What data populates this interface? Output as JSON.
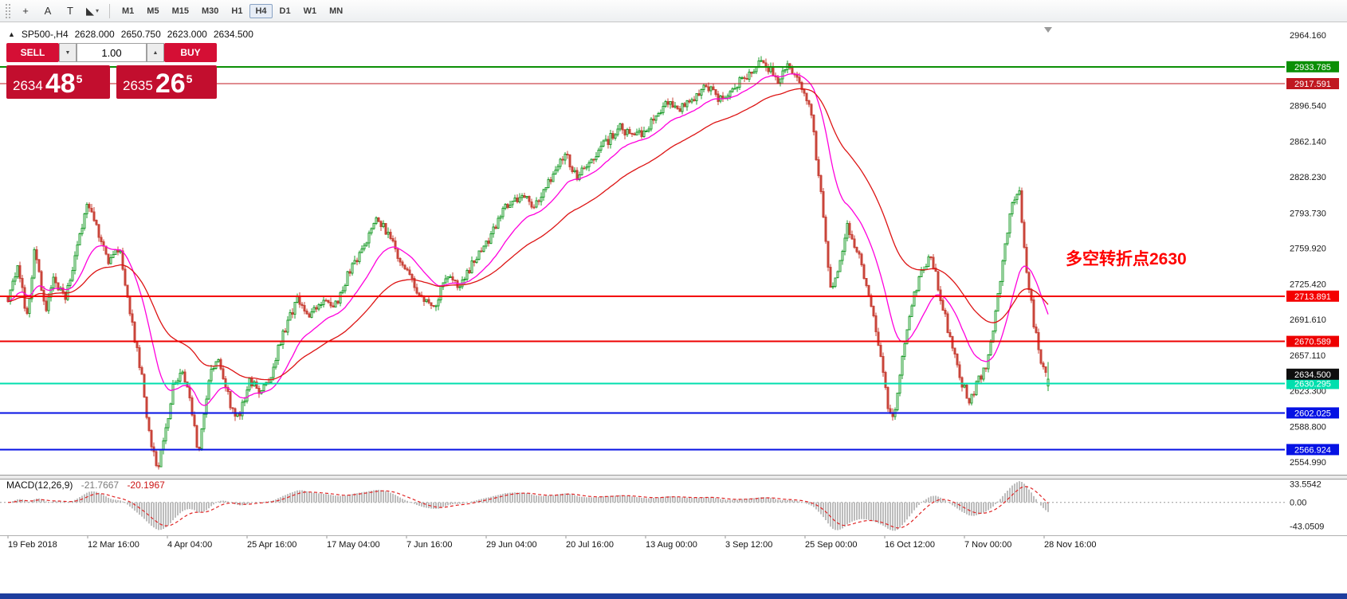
{
  "window": {
    "bottom_strip_color": "#1e3e9e"
  },
  "toolbar": {
    "tools": [
      {
        "name": "crosshair-icon",
        "glyph": "+"
      },
      {
        "name": "text-label-icon",
        "glyph": "A"
      },
      {
        "name": "text-box-icon",
        "glyph": "T"
      },
      {
        "name": "shapes-menu-icon",
        "glyph": "◣",
        "caret": "▾"
      }
    ],
    "timeframes": [
      {
        "label": "M1",
        "active": false
      },
      {
        "label": "M5",
        "active": false
      },
      {
        "label": "M15",
        "active": false
      },
      {
        "label": "M30",
        "active": false
      },
      {
        "label": "H1",
        "active": false
      },
      {
        "label": "H4",
        "active": true
      },
      {
        "label": "D1",
        "active": false
      },
      {
        "label": "W1",
        "active": false
      },
      {
        "label": "MN",
        "active": false
      }
    ]
  },
  "header": {
    "arrow": "▲",
    "symbol_period": "SP500-,H4",
    "open": "2628.000",
    "high": "2650.750",
    "low": "2623.000",
    "close": "2634.500"
  },
  "trade_panel": {
    "sell_label": "SELL",
    "buy_label": "BUY",
    "volume": "1.00",
    "down_glyph": "▼",
    "up_glyph": "▲",
    "sell_price": {
      "head": "2634",
      "big": "48",
      "sup": "5"
    },
    "buy_price": {
      "head": "2635",
      "big": "26",
      "sup": "5"
    },
    "button_color": "#d50f35",
    "panel_color": "#c20e2e"
  },
  "annotation": {
    "text": "多空转折点2630",
    "color": "#ff0000"
  },
  "macd_label": {
    "name": "MACD(12,26,9)",
    "value": "-21.7667",
    "signal": "-20.1967"
  },
  "chart_data": {
    "type": "candlestick",
    "symbol": "SP500-",
    "period": "H4",
    "title": "SP500-,H4",
    "last_ohlc": {
      "open": 2628.0,
      "high": 2650.75,
      "low": 2623.0,
      "close": 2634.5
    },
    "y_axis": {
      "min": 2554.99,
      "max": 2964.16,
      "ticks": [
        "2964.160",
        "2896.540",
        "2862.140",
        "2828.230",
        "2793.730",
        "2759.920",
        "2725.420",
        "2691.610",
        "2657.110",
        "2623.300",
        "2588.800",
        "2554.990"
      ]
    },
    "x_ticks": [
      "19 Feb 2018",
      "12 Mar 16:00",
      "4 Apr 04:00",
      "25 Apr 16:00",
      "17 May 04:00",
      "7 Jun 16:00",
      "29 Jun 04:00",
      "20 Jul 16:00",
      "13 Aug 00:00",
      "3 Sep 12:00",
      "25 Sep 00:00",
      "16 Oct 12:00",
      "7 Nov 00:00",
      "28 Nov 16:00"
    ],
    "levels": [
      {
        "price": 2933.785,
        "label": "2933.785",
        "color": "#0b8f06",
        "width": 2
      },
      {
        "price": 2917.591,
        "label": "2917.591",
        "color": "#c01820",
        "width": 1
      },
      {
        "price": 2713.891,
        "label": "2713.891",
        "color": "#f40000",
        "width": 2
      },
      {
        "price": 2670.589,
        "label": "2670.589",
        "color": "#ee0000",
        "width": 2
      },
      {
        "price": 2630.295,
        "label": "2630.295",
        "color": "#00dfae",
        "width": 2
      },
      {
        "price": 2602.025,
        "label": "2602.025",
        "color": "#0512e4",
        "width": 2
      },
      {
        "price": 2566.924,
        "label": "2566.924",
        "color": "#0512e4",
        "width": 2
      }
    ],
    "current_price": {
      "value": 2634.5,
      "label": "2634.500",
      "badge_color": "#0e0e0e"
    },
    "candles": {
      "count": 436,
      "bull_color": "#1f9e2e",
      "bear_color": "#c9443a",
      "price_path": [
        [
          0.0,
          2712
        ],
        [
          0.01,
          2745
        ],
        [
          0.018,
          2690
        ],
        [
          0.026,
          2762
        ],
        [
          0.036,
          2700
        ],
        [
          0.044,
          2730
        ],
        [
          0.055,
          2710
        ],
        [
          0.068,
          2770
        ],
        [
          0.076,
          2800
        ],
        [
          0.086,
          2778
        ],
        [
          0.096,
          2745
        ],
        [
          0.107,
          2760
        ],
        [
          0.117,
          2700
        ],
        [
          0.128,
          2640
        ],
        [
          0.135,
          2590
        ],
        [
          0.143,
          2545
        ],
        [
          0.15,
          2575
        ],
        [
          0.158,
          2625
        ],
        [
          0.168,
          2640
        ],
        [
          0.176,
          2610
        ],
        [
          0.183,
          2560
        ],
        [
          0.193,
          2635
        ],
        [
          0.203,
          2655
        ],
        [
          0.214,
          2610
        ],
        [
          0.222,
          2595
        ],
        [
          0.232,
          2635
        ],
        [
          0.242,
          2620
        ],
        [
          0.253,
          2640
        ],
        [
          0.265,
          2680
        ],
        [
          0.278,
          2710
        ],
        [
          0.29,
          2695
        ],
        [
          0.302,
          2710
        ],
        [
          0.315,
          2705
        ],
        [
          0.327,
          2735
        ],
        [
          0.339,
          2755
        ],
        [
          0.354,
          2790
        ],
        [
          0.368,
          2770
        ],
        [
          0.381,
          2740
        ],
        [
          0.395,
          2715
        ],
        [
          0.409,
          2700
        ],
        [
          0.422,
          2735
        ],
        [
          0.434,
          2720
        ],
        [
          0.448,
          2750
        ],
        [
          0.463,
          2770
        ],
        [
          0.478,
          2800
        ],
        [
          0.492,
          2810
        ],
        [
          0.506,
          2800
        ],
        [
          0.521,
          2825
        ],
        [
          0.535,
          2850
        ],
        [
          0.547,
          2830
        ],
        [
          0.56,
          2845
        ],
        [
          0.574,
          2860
        ],
        [
          0.588,
          2875
        ],
        [
          0.603,
          2865
        ],
        [
          0.618,
          2880
        ],
        [
          0.632,
          2900
        ],
        [
          0.644,
          2890
        ],
        [
          0.659,
          2905
        ],
        [
          0.673,
          2915
        ],
        [
          0.687,
          2900
        ],
        [
          0.7,
          2915
        ],
        [
          0.714,
          2930
        ],
        [
          0.727,
          2940
        ],
        [
          0.739,
          2920
        ],
        [
          0.751,
          2935
        ],
        [
          0.761,
          2915
        ],
        [
          0.772,
          2890
        ],
        [
          0.783,
          2800
        ],
        [
          0.791,
          2720
        ],
        [
          0.799,
          2745
        ],
        [
          0.807,
          2780
        ],
        [
          0.817,
          2755
        ],
        [
          0.827,
          2720
        ],
        [
          0.838,
          2660
        ],
        [
          0.846,
          2610
        ],
        [
          0.852,
          2598
        ],
        [
          0.86,
          2655
        ],
        [
          0.867,
          2700
        ],
        [
          0.876,
          2730
        ],
        [
          0.887,
          2755
        ],
        [
          0.895,
          2720
        ],
        [
          0.904,
          2680
        ],
        [
          0.914,
          2640
        ],
        [
          0.924,
          2612
        ],
        [
          0.934,
          2635
        ],
        [
          0.942,
          2650
        ],
        [
          0.953,
          2720
        ],
        [
          0.964,
          2800
        ],
        [
          0.972,
          2815
        ],
        [
          0.978,
          2750
        ],
        [
          0.986,
          2690
        ],
        [
          0.994,
          2645
        ],
        [
          1.0,
          2634.5
        ]
      ]
    },
    "moving_averages": [
      {
        "name": "ma-fast",
        "period": 21,
        "color": "#ff00dd"
      },
      {
        "name": "ma-slow",
        "period": 55,
        "color": "#dd1414"
      }
    ],
    "macd": {
      "fast": 12,
      "slow": 26,
      "signal": 9,
      "value": -21.7667,
      "signal_value": -20.1967,
      "histogram_color": "#bdbdbd",
      "signal_color": "#e02424",
      "axis_ticks": [
        "33.5542",
        "0.00",
        "-43.0509"
      ]
    }
  }
}
